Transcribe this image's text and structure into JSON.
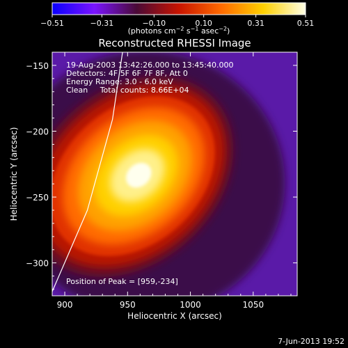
{
  "chart_data": {
    "type": "heatmap",
    "title": "Reconstructed RHESSI Image",
    "xlabel": "Heliocentric X (arcsec)",
    "ylabel": "Heliocentric Y (arcsec)",
    "xlim": [
      890,
      1085
    ],
    "ylim": [
      -325,
      -140
    ],
    "x_ticks": [
      900,
      950,
      1000,
      1050
    ],
    "x_tick_labels": [
      "900",
      "950",
      "1000",
      "1050"
    ],
    "y_ticks": [
      -300,
      -250,
      -200,
      -150
    ],
    "y_tick_labels": [
      "−300",
      "−250",
      "−200",
      "−150"
    ],
    "colorbar": {
      "min": -0.51,
      "max": 0.51,
      "ticks": [
        -0.51,
        -0.31,
        -0.1,
        0.1,
        0.31,
        0.51
      ],
      "tick_labels": [
        "−0.51",
        "−0.31",
        "−0.10",
        "0.10",
        "0.31",
        "0.51"
      ],
      "unit_label": "(photons cm",
      "unit_exp1": "−2",
      "unit_mid": " s",
      "unit_exp2": "−1",
      "unit_end": " asec",
      "unit_exp3": "−2",
      "unit_close": ")",
      "colormap": [
        "#0a00ff",
        "#7a14ff",
        "#4a0a36",
        "#c81400",
        "#ff6a00",
        "#ffd000",
        "#ffffe6"
      ]
    },
    "annotations": [
      "19-Aug-2003 13:42:26.000 to 13:45:40.000",
      "Detectors: 4F 5F 6F 7F 8F, Att 0",
      "Energy Range: 3.0 - 6.0 keV",
      "Clean     Total counts: 8.66E+04"
    ],
    "peak_label": "Position of Peak = [959,-234]",
    "peak": [
      959,
      -234
    ],
    "limb_line": [
      [
        889,
        -324
      ],
      [
        918,
        -260
      ],
      [
        938,
        -191
      ],
      [
        946,
        -140
      ]
    ],
    "grid": false
  },
  "footer": {
    "date": "7-Jun-2013 19:52"
  },
  "colors": {
    "background": "#000000",
    "limb": "#ffffff",
    "text": "#ffffff"
  }
}
